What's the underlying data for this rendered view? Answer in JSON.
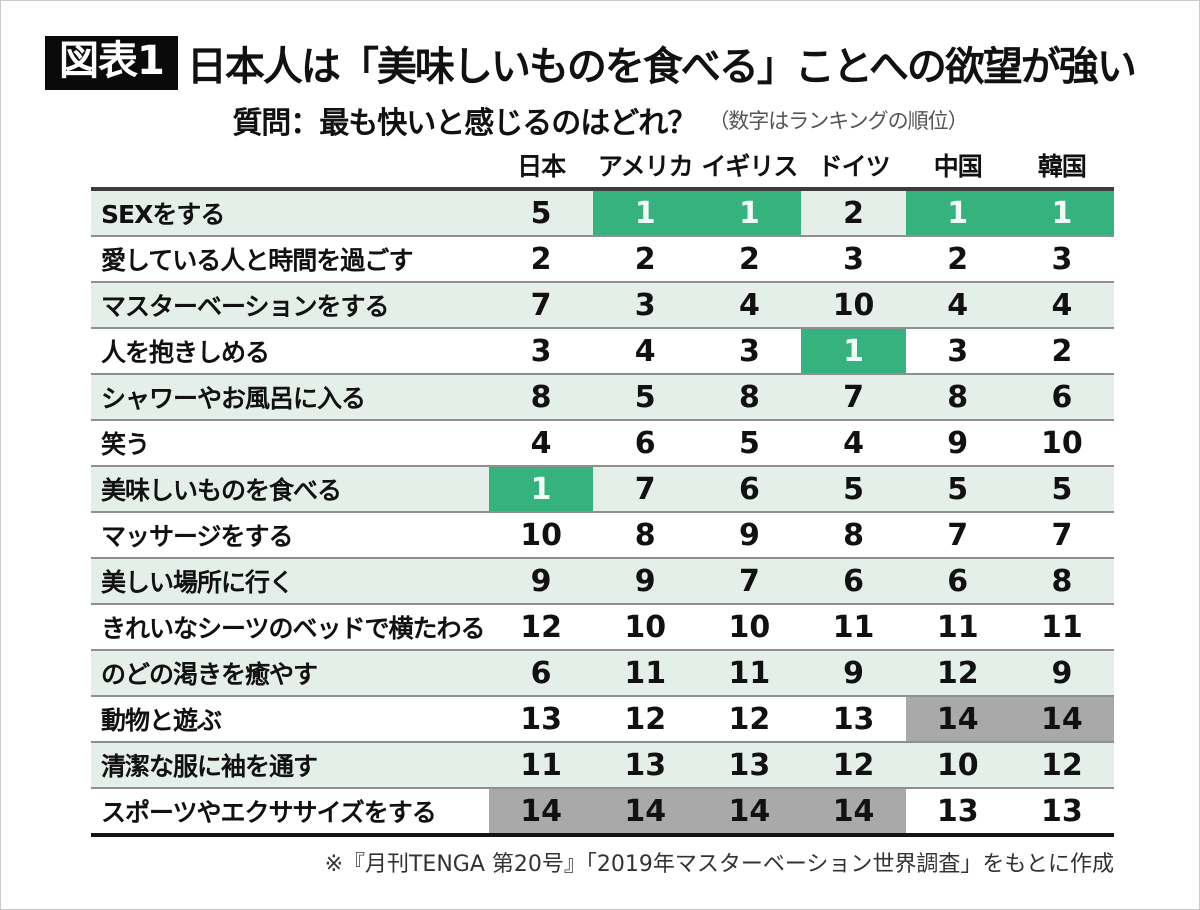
{
  "figure": {
    "tag": "図表1",
    "title": "日本人は「美味しいものを食べる」ことへの欲望が強い",
    "question": "質問：最も快いと感じるのはどれ？",
    "question_note": "（数字はランキングの順位）",
    "source": "※『月刊TENGA 第20号』「2019年マスターベーション世界調査」をもとに作成"
  },
  "colors": {
    "highlight_green": "#35b27e",
    "highlight_gray": "#a9a9a9",
    "row_alt_green": "#e5efe9"
  },
  "chart_data": {
    "type": "table",
    "title": "日本人は「美味しいものを食べる」ことへの欲望が強い",
    "question": "最も快いと感じるのはどれ？（数字はランキングの順位）",
    "columns": [
      "日本",
      "アメリカ",
      "イギリス",
      "ドイツ",
      "中国",
      "韓国"
    ],
    "rows": [
      {
        "label": "SEXをする",
        "values": [
          5,
          1,
          1,
          2,
          1,
          1
        ],
        "highlight": [
          null,
          "green",
          "green",
          null,
          "green",
          "green"
        ]
      },
      {
        "label": "愛している人と時間を過ごす",
        "values": [
          2,
          2,
          2,
          3,
          2,
          3
        ],
        "highlight": [
          null,
          null,
          null,
          null,
          null,
          null
        ]
      },
      {
        "label": "マスターベーションをする",
        "values": [
          7,
          3,
          4,
          10,
          4,
          4
        ],
        "highlight": [
          null,
          null,
          null,
          null,
          null,
          null
        ]
      },
      {
        "label": "人を抱きしめる",
        "values": [
          3,
          4,
          3,
          1,
          3,
          2
        ],
        "highlight": [
          null,
          null,
          null,
          "green",
          null,
          null
        ]
      },
      {
        "label": "シャワーやお風呂に入る",
        "values": [
          8,
          5,
          8,
          7,
          8,
          6
        ],
        "highlight": [
          null,
          null,
          null,
          null,
          null,
          null
        ]
      },
      {
        "label": "笑う",
        "values": [
          4,
          6,
          5,
          4,
          9,
          10
        ],
        "highlight": [
          null,
          null,
          null,
          null,
          null,
          null
        ]
      },
      {
        "label": "美味しいものを食べる",
        "values": [
          1,
          7,
          6,
          5,
          5,
          5
        ],
        "highlight": [
          "green",
          null,
          null,
          null,
          null,
          null
        ]
      },
      {
        "label": "マッサージをする",
        "values": [
          10,
          8,
          9,
          8,
          7,
          7
        ],
        "highlight": [
          null,
          null,
          null,
          null,
          null,
          null
        ]
      },
      {
        "label": "美しい場所に行く",
        "values": [
          9,
          9,
          7,
          6,
          6,
          8
        ],
        "highlight": [
          null,
          null,
          null,
          null,
          null,
          null
        ]
      },
      {
        "label": "きれいなシーツのベッドで横たわる",
        "values": [
          12,
          10,
          10,
          11,
          11,
          11
        ],
        "highlight": [
          null,
          null,
          null,
          null,
          null,
          null
        ]
      },
      {
        "label": "のどの渇きを癒やす",
        "values": [
          6,
          11,
          11,
          9,
          12,
          9
        ],
        "highlight": [
          null,
          null,
          null,
          null,
          null,
          null
        ]
      },
      {
        "label": "動物と遊ぶ",
        "values": [
          13,
          12,
          12,
          13,
          14,
          14
        ],
        "highlight": [
          null,
          null,
          null,
          null,
          "gray",
          "gray"
        ]
      },
      {
        "label": "清潔な服に袖を通す",
        "values": [
          11,
          13,
          13,
          12,
          10,
          12
        ],
        "highlight": [
          null,
          null,
          null,
          null,
          null,
          null
        ]
      },
      {
        "label": "スポーツやエクササイズをする",
        "values": [
          14,
          14,
          14,
          14,
          13,
          13
        ],
        "highlight": [
          "gray",
          "gray",
          "gray",
          "gray",
          null,
          null
        ]
      }
    ],
    "source": "※『月刊TENGA 第20号』「2019年マスターベーション世界調査」をもとに作成"
  }
}
